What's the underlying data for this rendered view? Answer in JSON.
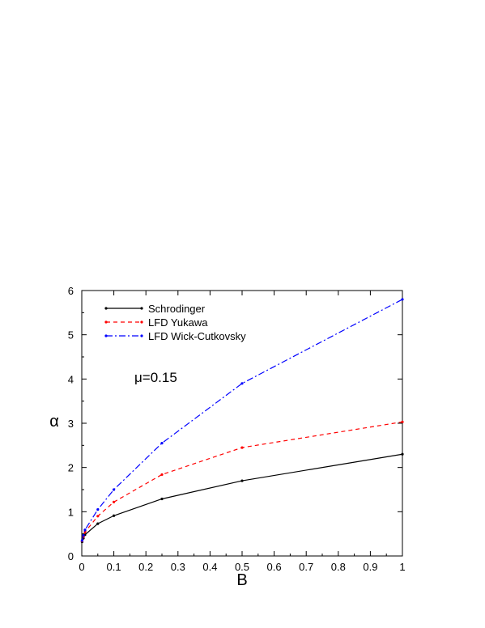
{
  "chart_data": {
    "type": "line",
    "xlabel": "B",
    "ylabel": "α",
    "xlim": [
      0,
      1
    ],
    "ylim": [
      0,
      6
    ],
    "x_ticks": [
      "0",
      "0.1",
      "0.2",
      "0.3",
      "0.4",
      "0.5",
      "0.6",
      "0.7",
      "0.8",
      "0.9",
      "1"
    ],
    "y_ticks": [
      "0",
      "1",
      "2",
      "3",
      "4",
      "5",
      "6"
    ],
    "grid": false,
    "legend_position": "top-left",
    "annotation": "μ=0.15",
    "series": [
      {
        "name": "Schrodinger",
        "color": "#000000",
        "dash": "solid",
        "x": [
          0.001,
          0.005,
          0.01,
          0.05,
          0.1,
          0.25,
          0.5,
          1.0
        ],
        "y": [
          0.32,
          0.4,
          0.48,
          0.73,
          0.91,
          1.29,
          1.7,
          2.3
        ]
      },
      {
        "name": "LFD Yukawa",
        "color": "#ff0000",
        "dash": "dashed",
        "x": [
          0.001,
          0.005,
          0.01,
          0.05,
          0.1,
          0.25,
          0.5,
          1.0
        ],
        "y": [
          0.34,
          0.44,
          0.54,
          0.9,
          1.22,
          1.84,
          2.45,
          3.03
        ]
      },
      {
        "name": "LFD Wick-Cutkovsky",
        "color": "#0000ff",
        "dash": "dashdot",
        "x": [
          0.001,
          0.005,
          0.01,
          0.05,
          0.1,
          0.25,
          0.5,
          1.0
        ],
        "y": [
          0.35,
          0.47,
          0.59,
          1.05,
          1.5,
          2.55,
          3.9,
          5.8
        ]
      }
    ]
  }
}
